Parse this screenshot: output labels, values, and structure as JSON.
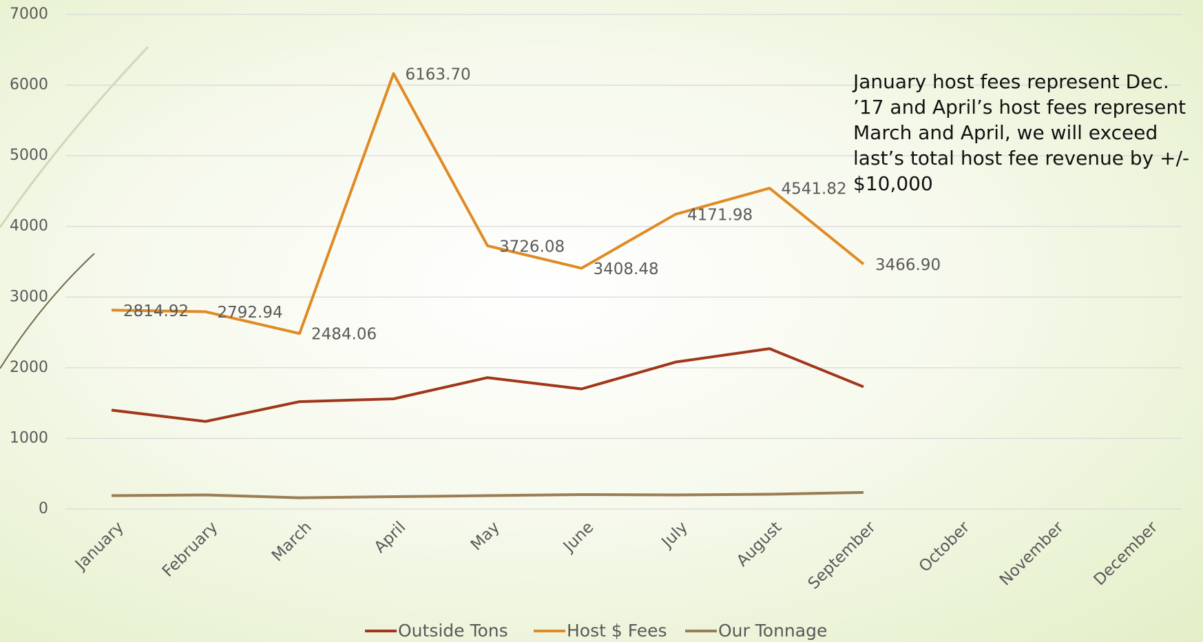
{
  "chart_data": {
    "type": "line",
    "annotation": "January host fees represent Dec. ’17 and April’s host fees represent March and April, we will exceed last’s total host fee revenue by +/- $10,000",
    "categories": [
      "January",
      "February",
      "March",
      "April",
      "May",
      "June",
      "July",
      "August",
      "September",
      "October",
      "November",
      "December"
    ],
    "series": [
      {
        "name": "Outside Tons",
        "color": "#a0361a",
        "values": [
          1400,
          1240,
          1520,
          1560,
          1860,
          1700,
          2080,
          2270,
          1730,
          null,
          null,
          null
        ]
      },
      {
        "name": "Host $ Fees",
        "color": "#e08a25",
        "values": [
          2814.92,
          2792.94,
          2484.06,
          6163.7,
          3726.08,
          3408.48,
          4171.98,
          4541.82,
          3466.9,
          null,
          null,
          null
        ],
        "value_labels": [
          "2814.92",
          "2792.94",
          "2484.06",
          "6163.70",
          "3726.08",
          "3408.48",
          "4171.98",
          "4541.82",
          "3466.90",
          null,
          null,
          null
        ]
      },
      {
        "name": "Our Tonnage",
        "color": "#9a7d55",
        "values": [
          190,
          200,
          160,
          175,
          190,
          205,
          200,
          210,
          235,
          null,
          null,
          null
        ]
      }
    ],
    "ylim": [
      0,
      7000
    ],
    "yticks": [
      0,
      1000,
      2000,
      3000,
      4000,
      5000,
      6000,
      7000
    ],
    "grid": true,
    "legend": "bottom"
  }
}
